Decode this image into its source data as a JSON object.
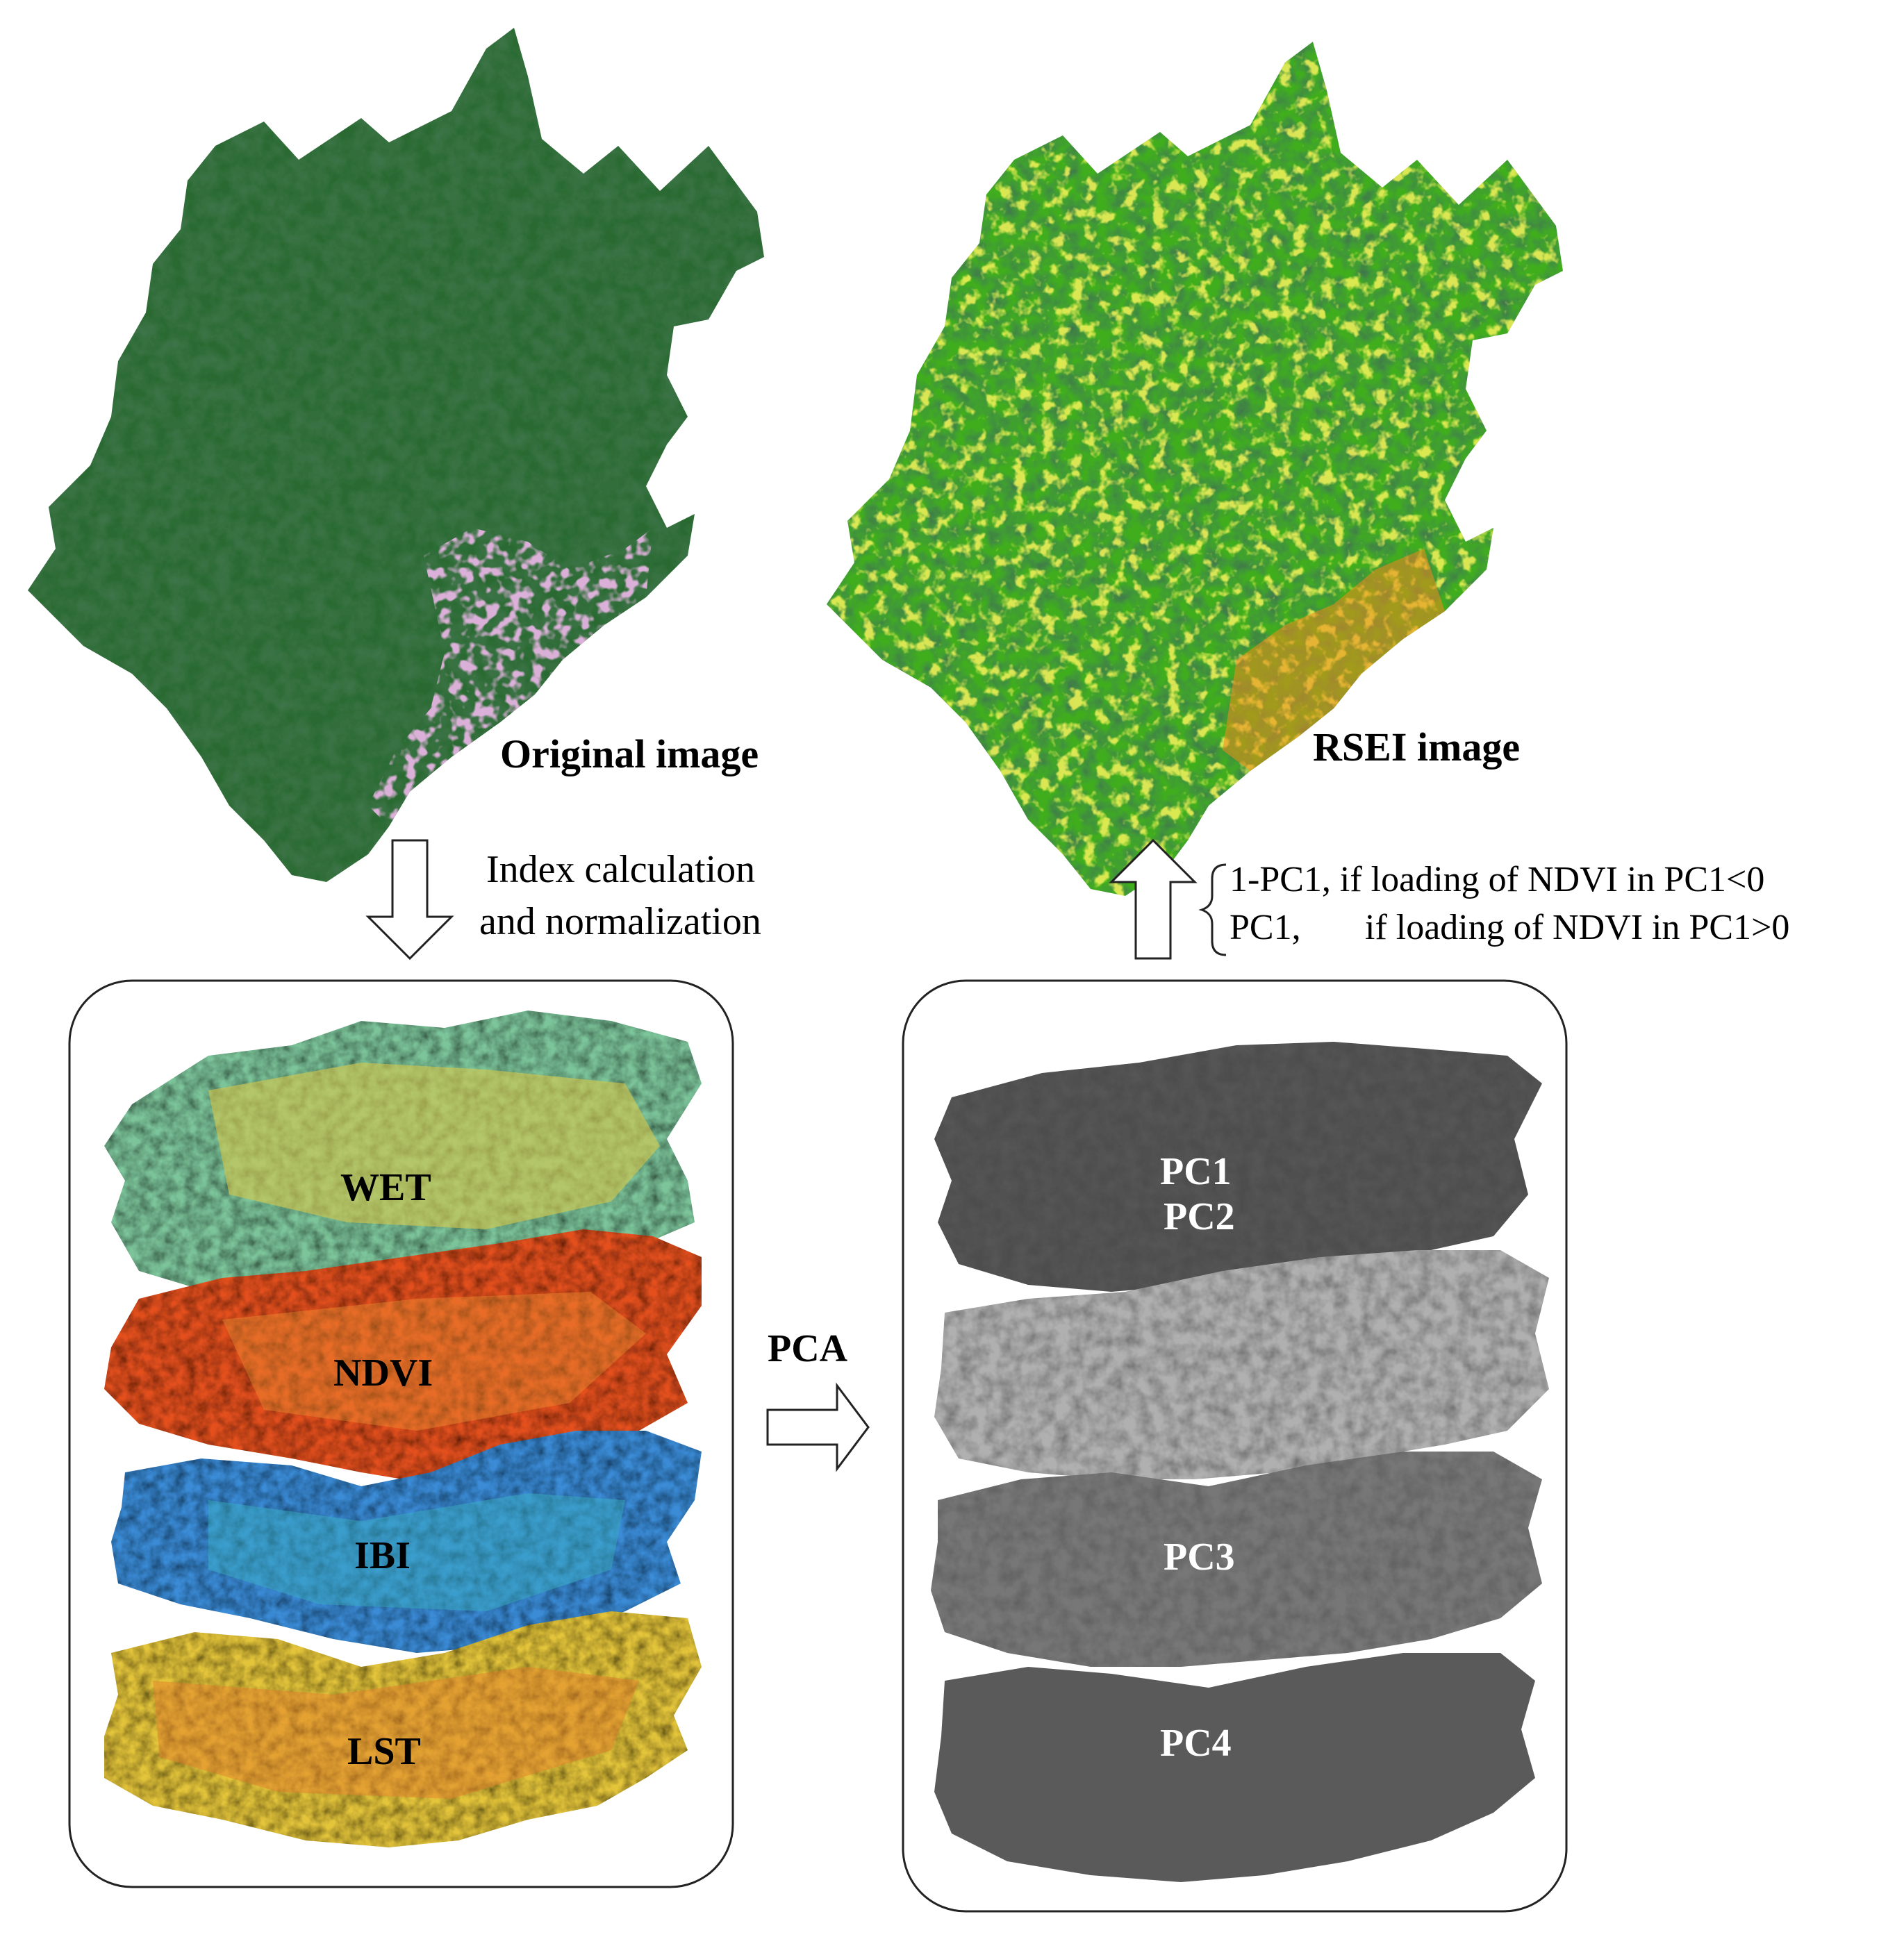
{
  "top_left": {
    "label": "Original image"
  },
  "top_right": {
    "label": "RSEI image"
  },
  "step_down": {
    "line1": "Index calculation",
    "line2": "and normalization"
  },
  "step_up": {
    "case1": "1-PC1, if loading of NDVI in PC1<0",
    "case2_a": "PC1,",
    "case2_b": "if loading of NDVI in PC1>0"
  },
  "step_pca": {
    "label": "PCA"
  },
  "index_stack": {
    "layers": [
      "WET",
      "NDVI",
      "IBI",
      "LST"
    ]
  },
  "pc_stack": {
    "layers": [
      "PC1",
      "PC2",
      "PC3",
      "PC4"
    ]
  },
  "colors": {
    "forest_dark": "#1f5a2a",
    "forest_mid": "#2e7a36",
    "urban_pink": "#d77bd0",
    "rsei_green": "#3fae1a",
    "rsei_yellow": "#e6e61c",
    "rsei_orange": "#f08a1a",
    "wet_teal": "#4fc3a1",
    "wet_yellow": "#d8c84a",
    "ndvi_red": "#e4441a",
    "ndvi_orange": "#f28a2a",
    "ibi_blue": "#2a6fd1",
    "ibi_teal": "#3cb4c0",
    "lst_yellow": "#e3c43a",
    "lst_orange": "#e77a2a",
    "pc_dark": "#4e4e4e",
    "pc_light": "#b5b5b5",
    "pc_mid": "#777777"
  }
}
